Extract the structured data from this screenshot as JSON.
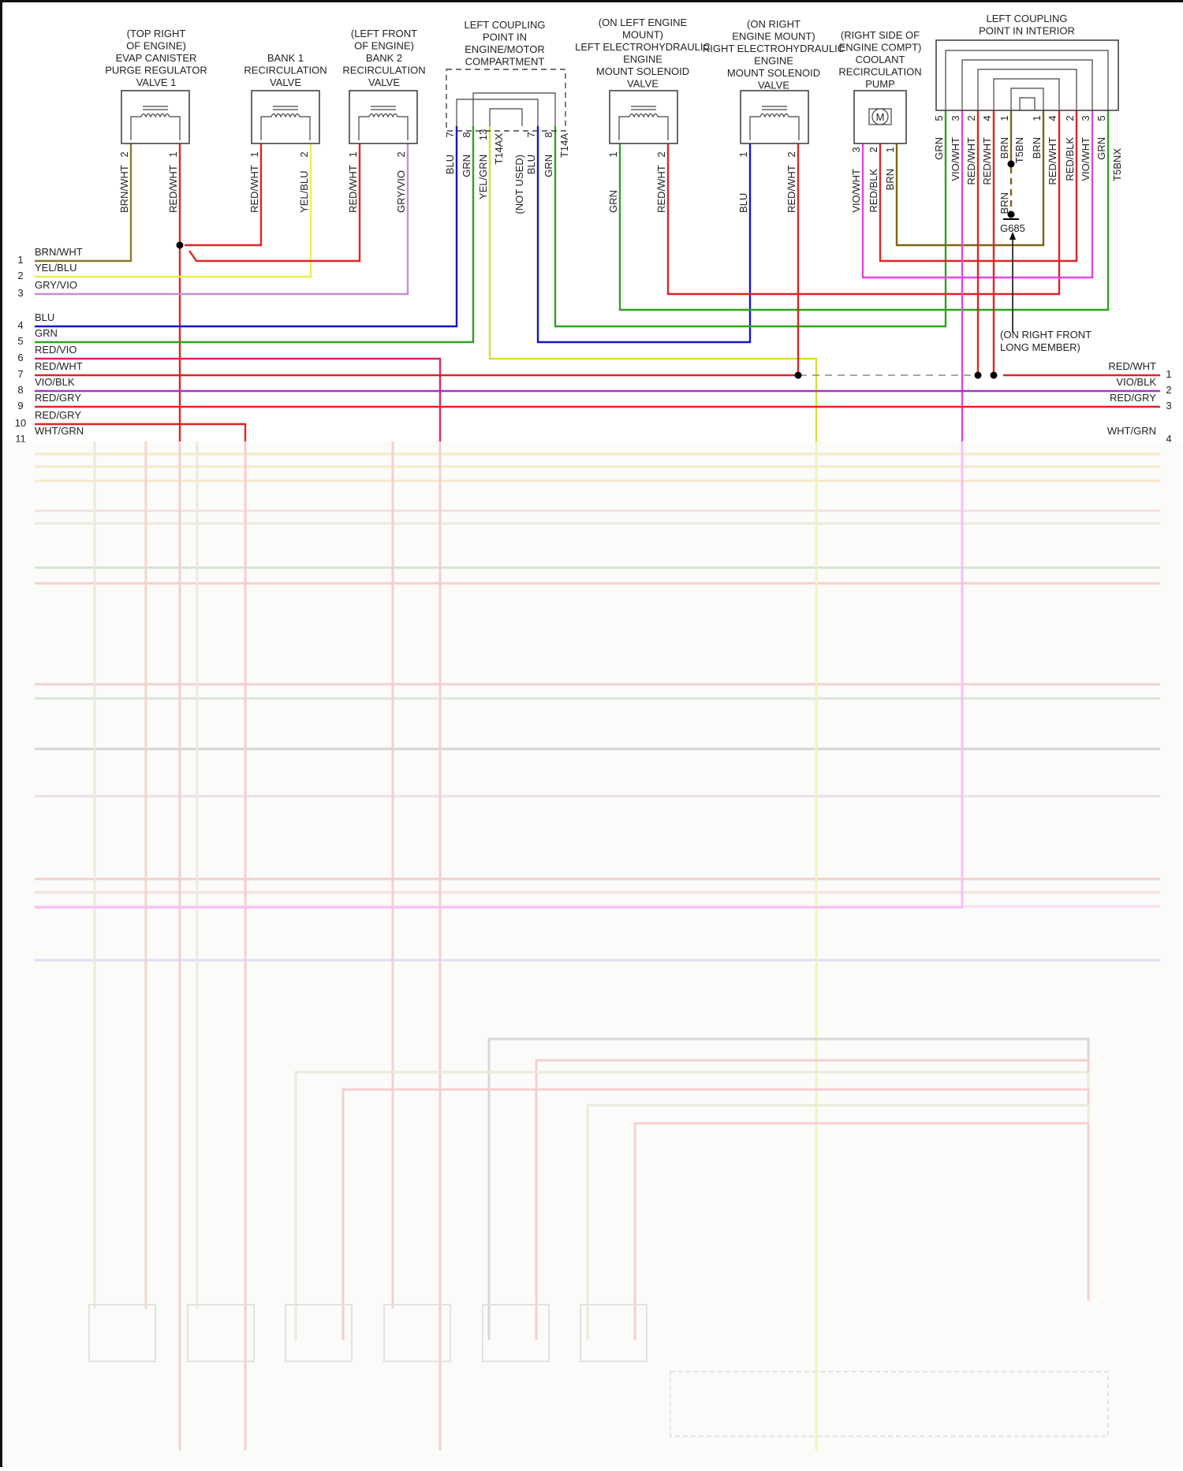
{
  "components": {
    "evap": {
      "lines": [
        "(TOP RIGHT",
        "OF ENGINE)",
        "EVAP CANISTER",
        "PURGE REGULATOR",
        "VALVE 1"
      ],
      "pins": [
        {
          "num": "2",
          "wire": "BRN/WHT"
        },
        {
          "num": "1",
          "wire": "RED/WHT"
        }
      ]
    },
    "bank1": {
      "lines": [
        "BANK 1",
        "RECIRCULATION",
        "VALVE"
      ],
      "pins": [
        {
          "num": "1",
          "wire": "RED/WHT"
        },
        {
          "num": "2",
          "wire": "YEL/BLU"
        }
      ]
    },
    "bank2": {
      "lines": [
        "(LEFT FRONT",
        "OF ENGINE)",
        "BANK 2",
        "RECIRCULATION",
        "VALVE"
      ],
      "pins": [
        {
          "num": "1",
          "wire": "RED/WHT"
        },
        {
          "num": "2",
          "wire": "GRY/VIO"
        }
      ]
    },
    "coupling_engine": {
      "lines": [
        "LEFT COUPLING",
        "POINT IN",
        "ENGINE/MOTOR",
        "COMPARTMENT"
      ],
      "pins": [
        {
          "num": "7",
          "wire": "BLU"
        },
        {
          "num": "8",
          "wire": "GRN"
        },
        {
          "num": "13",
          "wire": "YEL/GRN"
        },
        {
          "num": "7",
          "wire": "BLU"
        },
        {
          "num": "8",
          "wire": "GRN"
        }
      ],
      "connector_a": "T14AX",
      "connector_b": "T14A",
      "not_used": "(NOT USED)"
    },
    "left_mount": {
      "lines": [
        "(ON LEFT ENGINE",
        "MOUNT)",
        "LEFT ELECTROHYDRAULIC",
        "ENGINE",
        "MOUNT SOLENOID",
        "VALVE"
      ],
      "pins": [
        {
          "num": "1",
          "wire": "GRN"
        },
        {
          "num": "2",
          "wire": "RED/WHT"
        }
      ]
    },
    "right_mount": {
      "lines": [
        "(ON RIGHT",
        "ENGINE MOUNT)",
        "RIGHT ELECTROHYDRAULIC",
        "ENGINE",
        "MOUNT SOLENOID",
        "VALVE"
      ],
      "pins": [
        {
          "num": "1",
          "wire": "BLU"
        },
        {
          "num": "2",
          "wire": "RED/WHT"
        }
      ]
    },
    "pump": {
      "lines": [
        "(RIGHT SIDE OF",
        "ENGINE COMPT)",
        "COOLANT",
        "RECIRCULATION",
        "PUMP"
      ],
      "symbol": "M",
      "pins": [
        {
          "num": "3",
          "wire": "VIO/WHT"
        },
        {
          "num": "2",
          "wire": "RED/BLK"
        },
        {
          "num": "1",
          "wire": "BRN"
        }
      ]
    },
    "coupling_interior": {
      "lines": [
        "LEFT COUPLING",
        "POINT IN INTERIOR"
      ],
      "pins": [
        {
          "num": "5",
          "wire": "GRN"
        },
        {
          "num": "3",
          "wire": "VIO/WHT"
        },
        {
          "num": "2",
          "wire": "RED/WHT"
        },
        {
          "num": "4",
          "wire": "RED/WHT"
        },
        {
          "num": "1",
          "wire": "BRN"
        },
        {
          "num": "1",
          "wire": "BRN"
        },
        {
          "num": "4",
          "wire": "RED/WHT"
        },
        {
          "num": "2",
          "wire": "RED/BLK"
        },
        {
          "num": "3",
          "wire": "VIO/WHT"
        },
        {
          "num": "5",
          "wire": "GRN"
        }
      ],
      "connector_a": "T5BN",
      "connector_b": "T5BNX"
    }
  },
  "ground": {
    "id": "G685",
    "wire": "BRN",
    "note": [
      "(ON RIGHT FRONT",
      "LONG MEMBER)"
    ]
  },
  "left_rows": [
    {
      "num": "1",
      "label": "BRN/WHT"
    },
    {
      "num": "2",
      "label": "YEL/BLU"
    },
    {
      "num": "3",
      "label": "GRY/VIO"
    },
    {
      "num": "4",
      "label": "BLU"
    },
    {
      "num": "5",
      "label": "GRN"
    },
    {
      "num": "6",
      "label": "RED/VIO"
    },
    {
      "num": "7",
      "label": "RED/WHT"
    },
    {
      "num": "8",
      "label": "VIO/BLK"
    },
    {
      "num": "9",
      "label": "RED/GRY"
    },
    {
      "num": "10",
      "label": "RED/GRY"
    },
    {
      "num": "11",
      "label": "WHT/GRN"
    }
  ],
  "right_rows": [
    {
      "num": "1",
      "label": "RED/WHT"
    },
    {
      "num": "2",
      "label": "VIO/BLK"
    },
    {
      "num": "3",
      "label": "RED/GRY"
    },
    {
      "num": "4",
      "label": "WHT/GRN"
    }
  ],
  "colors": {
    "brn_wht": "#8a7a2c",
    "red": "#e02424",
    "yel_blu": "#eded50",
    "gry_vio": "#c88ed6",
    "blu": "#1414d0",
    "grn": "#2fa31f",
    "yel_grn": "#d6e035",
    "red_vio": "#e0245c",
    "vio_blk": "#a436c4",
    "vio_wht": "#e444e4",
    "brn": "#7e6414"
  }
}
